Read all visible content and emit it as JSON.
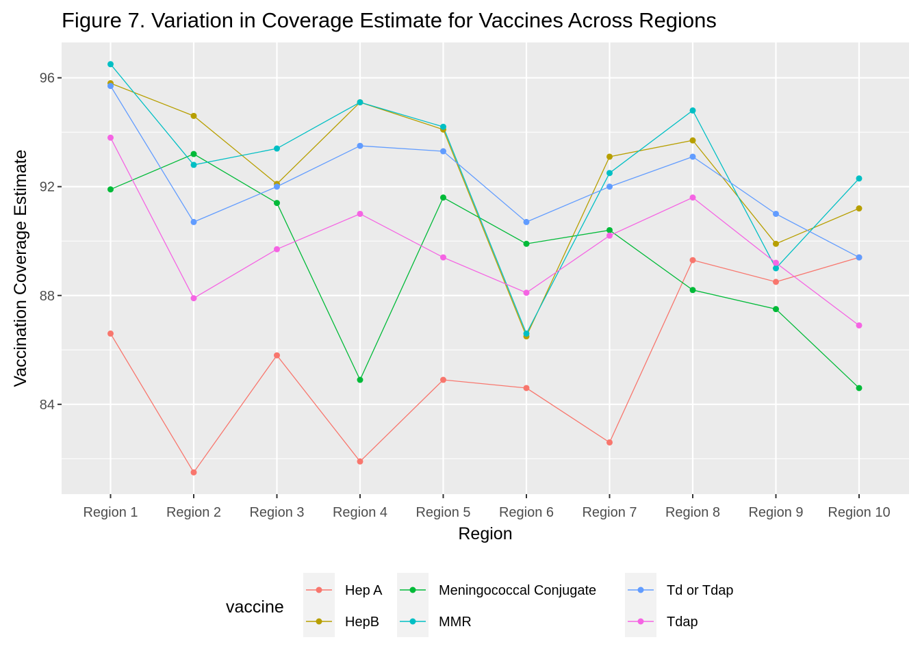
{
  "chart_data": {
    "type": "line",
    "title": "Figure 7. Variation in Coverage Estimate for Vaccines Across Regions",
    "xlabel": "Region",
    "ylabel": "Vaccination Coverage Estimate",
    "categories": [
      "Region 1",
      "Region 2",
      "Region 3",
      "Region 4",
      "Region 5",
      "Region 6",
      "Region 7",
      "Region 8",
      "Region 9",
      "Region 10"
    ],
    "yticks": [
      84,
      88,
      92,
      96
    ],
    "ylim": [
      80.7,
      97.3
    ],
    "grid": true,
    "background": "#ebebeb",
    "legend": {
      "title": "vaccine",
      "position": "bottom",
      "columns": [
        [
          "Hep A",
          "HepB"
        ],
        [
          "Meningococcal Conjugate",
          "MMR"
        ],
        [
          "Td or Tdap",
          "Tdap"
        ]
      ]
    },
    "series": [
      {
        "name": "Hep A",
        "color": "#f8766d",
        "values": [
          86.6,
          81.5,
          85.8,
          81.9,
          84.9,
          84.6,
          82.6,
          89.3,
          88.5,
          89.4
        ]
      },
      {
        "name": "HepB",
        "color": "#b79f00",
        "values": [
          95.8,
          94.6,
          92.1,
          95.1,
          94.1,
          86.5,
          93.1,
          93.7,
          89.9,
          91.2
        ]
      },
      {
        "name": "Meningococcal Conjugate",
        "color": "#00ba38",
        "values": [
          91.9,
          93.2,
          91.4,
          84.9,
          91.6,
          89.9,
          90.4,
          88.2,
          87.5,
          84.6
        ]
      },
      {
        "name": "MMR",
        "color": "#00bfc4",
        "values": [
          96.5,
          92.8,
          93.4,
          95.1,
          94.2,
          86.6,
          92.5,
          94.8,
          89.0,
          92.3
        ]
      },
      {
        "name": "Td or Tdap",
        "color": "#619cff",
        "values": [
          95.7,
          90.7,
          92.0,
          93.5,
          93.3,
          90.7,
          92.0,
          93.1,
          91.0,
          89.4
        ]
      },
      {
        "name": "Tdap",
        "color": "#f564e3",
        "values": [
          93.8,
          87.9,
          89.7,
          91.0,
          89.4,
          88.1,
          90.2,
          91.6,
          89.2,
          86.9
        ]
      }
    ]
  }
}
